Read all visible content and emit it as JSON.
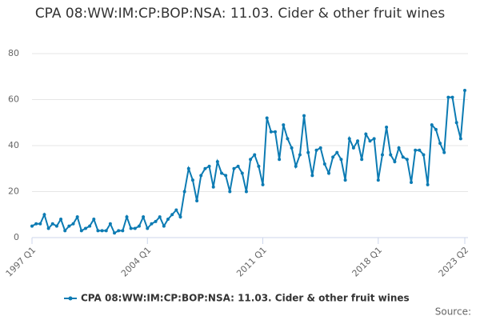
{
  "chart_data": {
    "type": "line",
    "title": "CPA 08:WW:IM:CP:BOP:NSA: 11.03. Cider & other fruit wines",
    "source_label": "Source:",
    "categories": [
      "1997 Q1",
      null,
      null,
      null,
      null,
      null,
      null,
      null,
      null,
      null,
      null,
      null,
      null,
      null,
      null,
      null,
      null,
      null,
      null,
      null,
      null,
      null,
      null,
      null,
      null,
      null,
      null,
      null,
      "2004 Q1",
      null,
      null,
      null,
      null,
      null,
      null,
      null,
      null,
      null,
      null,
      null,
      null,
      null,
      null,
      null,
      null,
      null,
      null,
      null,
      null,
      null,
      null,
      null,
      null,
      null,
      null,
      null,
      "2011 Q1",
      null,
      null,
      null,
      null,
      null,
      null,
      null,
      null,
      null,
      null,
      null,
      null,
      null,
      null,
      null,
      null,
      null,
      null,
      null,
      null,
      null,
      null,
      null,
      null,
      null,
      null,
      null,
      "2018 Q1",
      null,
      null,
      null,
      null,
      null,
      null,
      null,
      null,
      null,
      null,
      null,
      null,
      null,
      null,
      null,
      null,
      null,
      null,
      null,
      null,
      "2023 Q2"
    ],
    "series": [
      {
        "name": "CPA 08:WW:IM:CP:BOP:NSA: 11.03. Cider & other fruit wines",
        "color": "#0c7bb3",
        "values": [
          5,
          6,
          6,
          10,
          4,
          6,
          5,
          8,
          3,
          5,
          6,
          9,
          3,
          4,
          5,
          8,
          3,
          3,
          3,
          6,
          2,
          3,
          3,
          9,
          4,
          4,
          5,
          9,
          4,
          6,
          7,
          9,
          5,
          8,
          10,
          12,
          9,
          20,
          30,
          25,
          16,
          27,
          30,
          31,
          22,
          33,
          28,
          27,
          20,
          30,
          31,
          28,
          20,
          34,
          36,
          31,
          23,
          52,
          46,
          46,
          34,
          49,
          43,
          39,
          31,
          36,
          53,
          37,
          27,
          38,
          39,
          32,
          28,
          35,
          37,
          34,
          25,
          43,
          39,
          42,
          34,
          45,
          42,
          43,
          25,
          36,
          48,
          36,
          33,
          39,
          35,
          34,
          24,
          38,
          38,
          36,
          23,
          49,
          47,
          41,
          37,
          61,
          61,
          50,
          43,
          64
        ]
      }
    ],
    "ylim": [
      0,
      80
    ],
    "yticks": [
      0,
      20,
      40,
      60,
      80
    ],
    "grid": true,
    "legend": "bottom"
  }
}
